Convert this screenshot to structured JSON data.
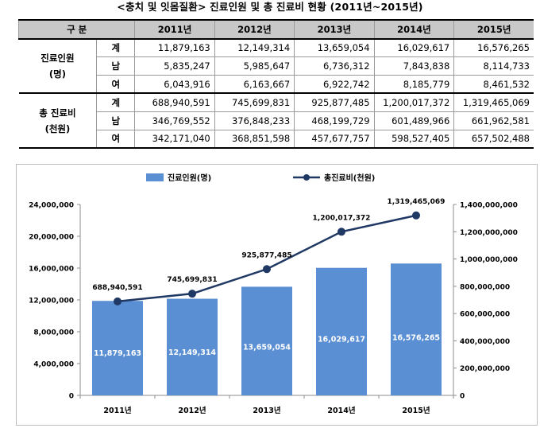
{
  "title": "<충치 및 잇몸질환> 진료인원 및 총 진료비 현황 (2011년~2015년)",
  "table": {
    "header_label": "구 분",
    "years": [
      "2011년",
      "2012년",
      "2013년",
      "2014년",
      "2015년"
    ],
    "groups": [
      {
        "label_line1": "진료인원",
        "label_line2": "(명)",
        "rows": [
          {
            "sub": "계",
            "values": [
              "11,879,163",
              "12,149,314",
              "13,659,054",
              "16,029,617",
              "16,576,265"
            ]
          },
          {
            "sub": "남",
            "values": [
              "5,835,247",
              "5,985,647",
              "6,736,312",
              "7,843,838",
              "8,114,733"
            ]
          },
          {
            "sub": "여",
            "values": [
              "6,043,916",
              "6,163,667",
              "6,922,742",
              "8,185,779",
              "8,461,532"
            ]
          }
        ]
      },
      {
        "label_line1": "총 진료비",
        "label_line2": "(천원)",
        "rows": [
          {
            "sub": "계",
            "values": [
              "688,940,591",
              "745,699,831",
              "925,877,485",
              "1,200,017,372",
              "1,319,465,069"
            ]
          },
          {
            "sub": "남",
            "values": [
              "346,769,552",
              "376,848,233",
              "468,199,729",
              "601,489,966",
              "661,962,581"
            ]
          },
          {
            "sub": "여",
            "values": [
              "342,171,040",
              "368,851,598",
              "457,677,757",
              "598,527,405",
              "657,502,488"
            ]
          }
        ]
      }
    ]
  },
  "chart_data": {
    "type": "bar",
    "categories": [
      "2011년",
      "2012년",
      "2013년",
      "2014년",
      "2015년"
    ],
    "series": [
      {
        "name": "진료인원(명)",
        "type": "bar",
        "axis": "left",
        "color": "#5b8fd4",
        "values": [
          11879163,
          12149314,
          13659054,
          16029617,
          16576265
        ],
        "labels": [
          "11,879,163",
          "12,149,314",
          "13,659,054",
          "16,029,617",
          "16,576,265"
        ]
      },
      {
        "name": "총진료비(천원)",
        "type": "line",
        "axis": "right",
        "color": "#1f3864",
        "values": [
          688940591,
          745699831,
          925877485,
          1200017372,
          1319465069
        ],
        "labels": [
          "688,940,591",
          "745,699,831",
          "925,877,485",
          "1,200,017,372",
          "1,319,465,069"
        ]
      }
    ],
    "y_left": {
      "min": 0,
      "max": 24000000,
      "ticks": [
        "0",
        "4,000,000",
        "8,000,000",
        "12,000,000",
        "16,000,000",
        "20,000,000",
        "24,000,000"
      ]
    },
    "y_right": {
      "min": 0,
      "max": 1400000000,
      "ticks": [
        "0",
        "200,000,000",
        "400,000,000",
        "600,000,000",
        "800,000,000",
        "1,000,000,000",
        "1,200,000,000",
        "1,400,000,000"
      ]
    },
    "legend_position": "top-center",
    "grid": false
  }
}
